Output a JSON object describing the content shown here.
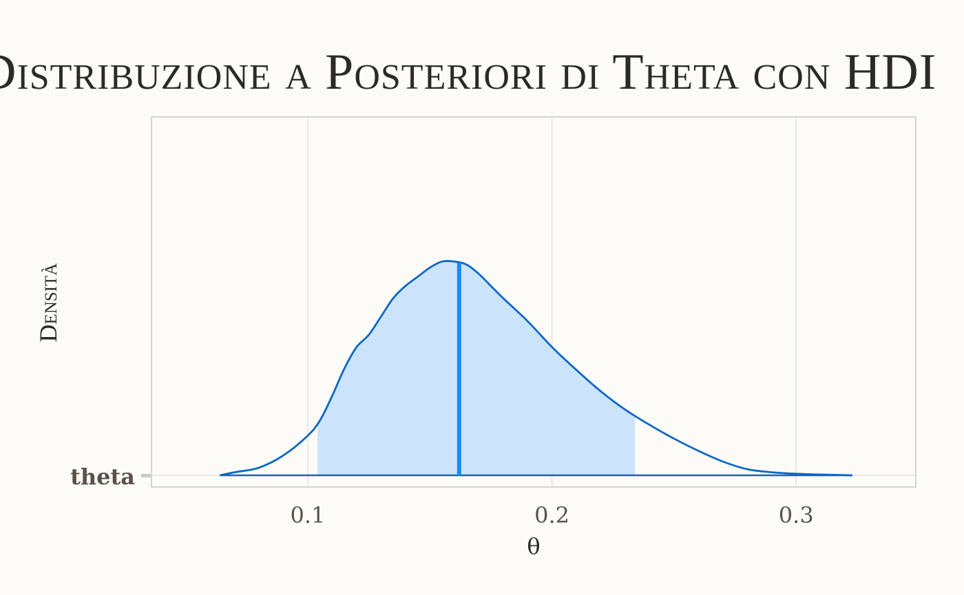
{
  "title": "Distribuzione a Posteriori di Theta con HDI",
  "ylabel": "Densità",
  "colors": {
    "background": "#fcfbf8",
    "curve": "#0a66c8",
    "hdi_fill": "#cce4fb",
    "median_line": "#1a8af0",
    "grid": "#dcdcdc",
    "panel_border": "#c8c8c8",
    "tick_text": "#5a524a"
  },
  "chart_data": {
    "type": "area",
    "title": "Distribuzione a Posteriori di Theta con HDI",
    "xlabel": "θ",
    "ylabel": "Densità",
    "xlim": [
      0.036,
      0.349
    ],
    "xticks": [
      0.1,
      0.2,
      0.3
    ],
    "xtick_labels": [
      "0.1",
      "0.2",
      "0.3"
    ],
    "yticks": [
      "theta"
    ],
    "grid": true,
    "series": [
      {
        "x": [
          0.064,
          0.07,
          0.08,
          0.09,
          0.1,
          0.105,
          0.11,
          0.115,
          0.12,
          0.125,
          0.13,
          0.135,
          0.14,
          0.145,
          0.15,
          0.155,
          0.16,
          0.165,
          0.17,
          0.175,
          0.18,
          0.19,
          0.2,
          0.21,
          0.22,
          0.23,
          0.24,
          0.25,
          0.26,
          0.27,
          0.28,
          0.29,
          0.3,
          0.31,
          0.323
        ],
        "y": [
          0.0,
          0.02,
          0.05,
          0.13,
          0.26,
          0.36,
          0.52,
          0.7,
          0.84,
          0.92,
          1.04,
          1.16,
          1.24,
          1.3,
          1.36,
          1.4,
          1.4,
          1.38,
          1.32,
          1.24,
          1.16,
          1.01,
          0.84,
          0.69,
          0.55,
          0.43,
          0.33,
          0.24,
          0.16,
          0.09,
          0.04,
          0.02,
          0.01,
          0.005,
          0.0
        ]
      }
    ],
    "hdi": [
      0.104,
      0.234
    ],
    "median": 0.162
  }
}
